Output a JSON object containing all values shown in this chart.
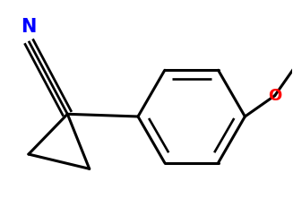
{
  "background_color": "#ffffff",
  "bond_color": "#000000",
  "N_color": "#0000ff",
  "O_color": "#ff0000",
  "bond_lw": 2.2,
  "figsize": [
    3.27,
    2.41
  ],
  "dpi": 100,
  "xlim": [
    -0.55,
    1.85
  ],
  "ylim": [
    -0.75,
    0.85
  ]
}
